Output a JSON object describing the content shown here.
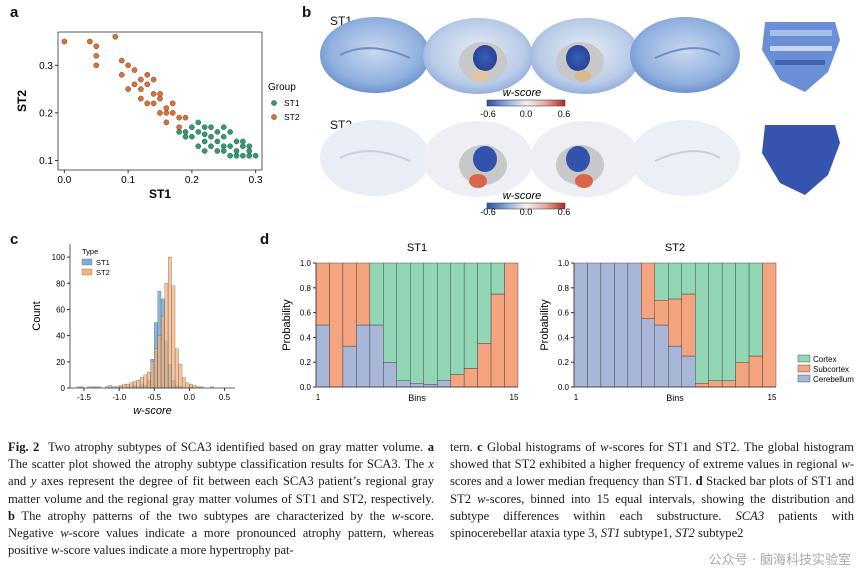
{
  "panels": {
    "a": "a",
    "b": "b",
    "c": "c",
    "d": "d"
  },
  "colors": {
    "st1_green": "#2e9e6e",
    "st2_orange": "#e07030",
    "hist_blue": "#7aaedc",
    "hist_orange": "#f5b27a",
    "cortex": "#92d6b5",
    "subcortex": "#f4a47f",
    "cerebellum": "#a8b6d8"
  },
  "brain": {
    "row1_label": "ST1",
    "row2_label": "ST2",
    "colorbar_title": "w-score",
    "colorbar_ticks": [
      "-0.6",
      "0.0",
      "0.6"
    ]
  },
  "chart_data": [
    {
      "type": "scatter",
      "panel": "a",
      "xlabel": "ST1",
      "ylabel": "ST2",
      "xlim": [
        -0.01,
        0.31
      ],
      "ylim": [
        0.08,
        0.37
      ],
      "xticks": [
        "0.0",
        "0.1",
        "0.2",
        "0.3"
      ],
      "yticks": [
        "0.1",
        "0.2",
        "0.3"
      ],
      "legend_title": "Group",
      "legend_position": "right",
      "series": [
        {
          "name": "ST1",
          "points": [
            [
              0.19,
              0.16
            ],
            [
              0.2,
              0.15
            ],
            [
              0.21,
              0.16
            ],
            [
              0.22,
              0.14
            ],
            [
              0.22,
              0.17
            ],
            [
              0.23,
              0.15
            ],
            [
              0.23,
              0.13
            ],
            [
              0.24,
              0.16
            ],
            [
              0.24,
              0.14
            ],
            [
              0.25,
              0.12
            ],
            [
              0.25,
              0.15
            ],
            [
              0.26,
              0.13
            ],
            [
              0.26,
              0.16
            ],
            [
              0.27,
              0.12
            ],
            [
              0.27,
              0.14
            ],
            [
              0.28,
              0.11
            ],
            [
              0.28,
              0.13
            ],
            [
              0.29,
              0.12
            ],
            [
              0.29,
              0.11
            ],
            [
              0.3,
              0.11
            ],
            [
              0.21,
              0.18
            ],
            [
              0.2,
              0.17
            ],
            [
              0.22,
              0.12
            ],
            [
              0.24,
              0.12
            ],
            [
              0.26,
              0.11
            ],
            [
              0.23,
              0.17
            ],
            [
              0.25,
              0.13
            ],
            [
              0.28,
              0.14
            ],
            [
              0.27,
              0.11
            ],
            [
              0.19,
              0.15
            ],
            [
              0.21,
              0.13
            ],
            [
              0.25,
              0.17
            ],
            [
              0.18,
              0.16
            ],
            [
              0.29,
              0.13
            ],
            [
              0.22,
              0.155
            ]
          ]
        },
        {
          "name": "ST2",
          "points": [
            [
              0.0,
              0.35
            ],
            [
              0.04,
              0.35
            ],
            [
              0.05,
              0.34
            ],
            [
              0.05,
              0.32
            ],
            [
              0.08,
              0.36
            ],
            [
              0.05,
              0.3
            ],
            [
              0.1,
              0.3
            ],
            [
              0.09,
              0.28
            ],
            [
              0.11,
              0.29
            ],
            [
              0.12,
              0.27
            ],
            [
              0.1,
              0.25
            ],
            [
              0.12,
              0.25
            ],
            [
              0.13,
              0.26
            ],
            [
              0.14,
              0.24
            ],
            [
              0.14,
              0.22
            ],
            [
              0.15,
              0.23
            ],
            [
              0.16,
              0.21
            ],
            [
              0.17,
              0.2
            ],
            [
              0.18,
              0.19
            ],
            [
              0.18,
              0.17
            ],
            [
              0.13,
              0.22
            ],
            [
              0.15,
              0.2
            ],
            [
              0.16,
              0.18
            ],
            [
              0.11,
              0.26
            ],
            [
              0.14,
              0.27
            ],
            [
              0.12,
              0.23
            ],
            [
              0.17,
              0.22
            ],
            [
              0.19,
              0.19
            ],
            [
              0.15,
              0.24
            ],
            [
              0.13,
              0.28
            ],
            [
              0.16,
              0.2
            ],
            [
              0.09,
              0.31
            ]
          ]
        }
      ]
    },
    {
      "type": "bar",
      "panel": "c",
      "xlabel": "w-score",
      "ylabel": "Count",
      "xlim": [
        -1.7,
        0.65
      ],
      "ylim": [
        0,
        110
      ],
      "xticks": [
        "-1.5",
        "-1.0",
        "-0.5",
        "0.0",
        "0.5"
      ],
      "yticks": [
        "0",
        "20",
        "40",
        "60",
        "80",
        "100"
      ],
      "legend_title": "Type",
      "legend_position": "top-left",
      "bin_width": 0.05,
      "bin_start": -1.6,
      "series": [
        {
          "name": "ST1",
          "values": [
            0,
            0,
            0,
            0,
            0,
            0,
            0,
            0,
            0,
            0,
            0,
            0,
            1,
            0,
            1,
            1,
            2,
            1,
            3,
            2,
            6,
            22,
            50,
            74,
            68,
            36,
            18,
            6,
            2,
            1,
            0,
            0,
            1,
            0,
            0,
            0,
            0,
            0,
            0,
            0,
            0,
            0,
            0,
            0,
            0,
            0,
            0
          ]
        },
        {
          "name": "ST2",
          "values": [
            1,
            1,
            0,
            1,
            1,
            1,
            1,
            0,
            1,
            2,
            1,
            1,
            2,
            3,
            3,
            4,
            5,
            6,
            8,
            10,
            12,
            20,
            30,
            40,
            55,
            80,
            100,
            78,
            30,
            18,
            8,
            4,
            3,
            2,
            1,
            1,
            0,
            0,
            1,
            0,
            0,
            0,
            0,
            0,
            0,
            0,
            0
          ]
        }
      ]
    },
    {
      "type": "bar",
      "panel": "d",
      "stacked": true,
      "title": "ST1",
      "xlabel": "Bins",
      "ylabel": "Probability",
      "ylim": [
        0.0,
        1.0
      ],
      "xticks": [
        "1",
        "15"
      ],
      "yticks": [
        "0.0",
        "0.2",
        "0.4",
        "0.6",
        "0.8",
        "1.0"
      ],
      "categories": [
        1,
        2,
        3,
        4,
        5,
        6,
        7,
        8,
        9,
        10,
        11,
        12,
        13,
        14,
        15
      ],
      "series": [
        {
          "name": "Cerebellum",
          "values": [
            0.5,
            0.0,
            0.33,
            0.5,
            0.5,
            0.2,
            0.05,
            0.03,
            0.02,
            0.05,
            0.0,
            0.0,
            0.0,
            0.0,
            0.0
          ]
        },
        {
          "name": "Subcortex",
          "values": [
            0.5,
            1.0,
            0.67,
            0.5,
            0.0,
            0.0,
            0.0,
            0.0,
            0.0,
            0.0,
            0.1,
            0.15,
            0.35,
            0.75,
            1.0
          ]
        },
        {
          "name": "Cortex",
          "values": [
            0.0,
            0.0,
            0.0,
            0.0,
            0.5,
            0.8,
            0.95,
            0.97,
            0.98,
            0.95,
            0.9,
            0.85,
            0.65,
            0.25,
            0.0
          ]
        }
      ]
    },
    {
      "type": "bar",
      "panel": "d",
      "stacked": true,
      "title": "ST2",
      "xlabel": "Bins",
      "ylabel": "Probability",
      "ylim": [
        0.0,
        1.0
      ],
      "xticks": [
        "1",
        "15"
      ],
      "yticks": [
        "0.0",
        "0.2",
        "0.4",
        "0.6",
        "0.8",
        "1.0"
      ],
      "legend_position": "right",
      "categories": [
        1,
        2,
        3,
        4,
        5,
        6,
        7,
        8,
        9,
        10,
        11,
        12,
        13,
        14,
        15
      ],
      "series": [
        {
          "name": "Cerebellum",
          "values": [
            1.0,
            1.0,
            1.0,
            1.0,
            1.0,
            0.55,
            0.5,
            0.33,
            0.25,
            0.0,
            0.0,
            0.0,
            0.0,
            0.0,
            0.0
          ]
        },
        {
          "name": "Subcortex",
          "values": [
            0.0,
            0.0,
            0.0,
            0.0,
            0.0,
            0.45,
            0.2,
            0.38,
            0.5,
            0.03,
            0.05,
            0.05,
            0.2,
            0.25,
            1.0
          ]
        },
        {
          "name": "Cortex",
          "values": [
            0.0,
            0.0,
            0.0,
            0.0,
            0.0,
            0.0,
            0.3,
            0.29,
            0.25,
            0.97,
            0.95,
            0.95,
            0.8,
            0.75,
            0.0
          ]
        }
      ]
    }
  ],
  "caption": {
    "fig_label": "Fig. 2",
    "left_html": "<b>Fig. 2</b>&nbsp; Two atrophy subtypes of SCA3 identified based on gray matter volume. <b>a</b> The scatter plot showed the atrophy subtype classification results for SCA3. The <i>x</i> and <i>y</i> axes represent the degree of fit between each SCA3 patient’s regional gray matter volume and the regional gray matter volumes of ST1 and ST2, respectively. <b>b</b> The atrophy patterns of the two subtypes are characterized by the <i>w</i>-score. Negative <i>w</i>-score values indicate a more pronounced atrophy pattern, whereas positive <i>w</i>-score values indicate a more hypertrophy pat-",
    "right_html": "tern. <b>c</b> Global histograms of <i>w</i>-scores for ST1 and ST2. The global histogram showed that ST2 exhibited a higher frequency of extreme values in regional <i>w</i>-scores and a lower median frequency than ST1. <b>d</b> Stacked bar plots of ST1 and ST2 <i>w</i>-scores, binned into 15 equal intervals, showing the distribution and subtype differences within each substructure. <i>SCA3</i> patients with spinocerebellar ataxia type 3, <i>ST1</i> subtype1, <i>ST2</i> subtype2"
  },
  "watermark": "公众号 · 脑海科技实验室"
}
